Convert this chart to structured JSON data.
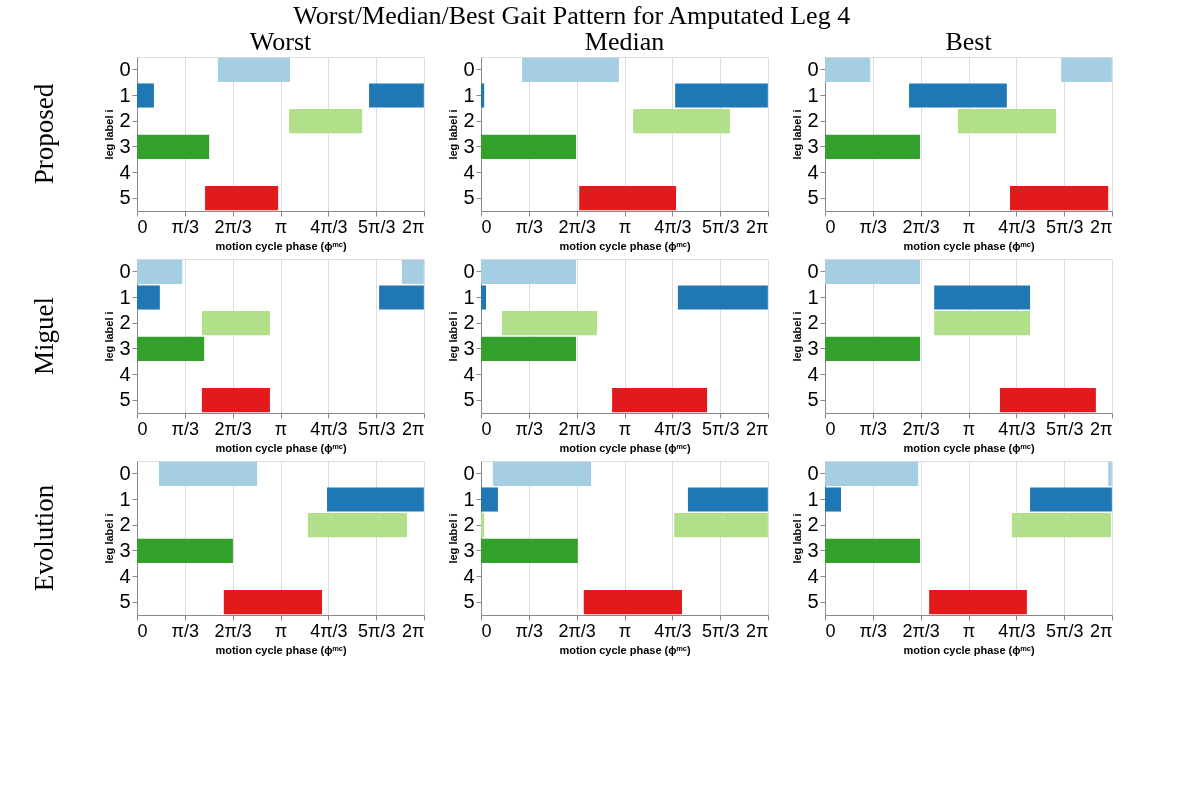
{
  "chart_data": [
    {
      "type": "bar",
      "orientation": "horizontal",
      "title": "Worst",
      "annotations": [
        "Worst/Median/Best Gait Pattern for Amputated Leg 4",
        "Proposed"
      ],
      "xlabel": "motion cycle phase (ϕᵐᶜ)",
      "ylabel": "leg label i",
      "categories": [
        "0",
        "1",
        "2",
        "3",
        "4",
        "5"
      ],
      "xlim": [
        0,
        6.283
      ],
      "xticks": [
        0,
        {
          "value": 1.047,
          "label": "π/3"
        },
        {
          "value": 2.094,
          "label": "2π/3"
        },
        {
          "value": 3.142,
          "label": "π"
        },
        {
          "value": 4.189,
          "label": "4π/3"
        },
        {
          "value": 5.236,
          "label": "5π/3"
        },
        {
          "value": 6.283,
          "label": "2π"
        }
      ],
      "grid": "x",
      "series": [
        {
          "colors": [
            "#a6cee3",
            "#1f78b4",
            "#b2df8a",
            "#33a02c",
            null,
            "#e31a1c"
          ],
          "base": [
            1.77,
            0,
            3.33,
            0,
            null,
            1.49
          ],
          "values": [
            1.58,
            0.37,
            1.6,
            1.58,
            null,
            1.6
          ]
        },
        {
          "colors": [
            null,
            "#1f78b4",
            null,
            null,
            null,
            null
          ],
          "base": [
            null,
            5.08,
            null,
            null,
            null,
            null
          ],
          "values": [
            null,
            1.2,
            null,
            null,
            null,
            null
          ]
        }
      ]
    },
    {
      "type": "bar",
      "orientation": "horizontal",
      "title": "Median",
      "xlabel": "motion cycle phase (ϕᵐᶜ)",
      "ylabel": "leg label i",
      "categories": [
        "0",
        "1",
        "2",
        "3",
        "4",
        "5"
      ],
      "xlim": [
        0,
        6.283
      ],
      "xticks": [
        0,
        {
          "value": 1.047,
          "label": "π/3"
        },
        {
          "value": 2.094,
          "label": "2π/3"
        },
        {
          "value": 3.142,
          "label": "π"
        },
        {
          "value": 4.189,
          "label": "4π/3"
        },
        {
          "value": 5.236,
          "label": "5π/3"
        },
        {
          "value": 6.283,
          "label": "2π"
        }
      ],
      "grid": "x",
      "series": [
        {
          "colors": [
            "#a6cee3",
            "#1f78b4",
            "#b2df8a",
            "#33a02c",
            null,
            "#e31a1c"
          ],
          "base": [
            0.9,
            0,
            3.33,
            0,
            null,
            2.15
          ],
          "values": [
            2.12,
            0.07,
            2.12,
            2.08,
            null,
            2.12
          ]
        },
        {
          "colors": [
            null,
            "#1f78b4",
            null,
            null,
            null,
            null
          ],
          "base": [
            null,
            4.25,
            null,
            null,
            null,
            null
          ],
          "values": [
            null,
            2.03,
            null,
            null,
            null,
            null
          ]
        }
      ]
    },
    {
      "type": "bar",
      "orientation": "horizontal",
      "title": "Best",
      "xlabel": "motion cycle phase (ϕᵐᶜ)",
      "ylabel": "leg label i",
      "categories": [
        "0",
        "1",
        "2",
        "3",
        "4",
        "5"
      ],
      "xlim": [
        0,
        6.283
      ],
      "xticks": [
        0,
        {
          "value": 1.047,
          "label": "π/3"
        },
        {
          "value": 2.094,
          "label": "2π/3"
        },
        {
          "value": 3.142,
          "label": "π"
        },
        {
          "value": 4.189,
          "label": "4π/3"
        },
        {
          "value": 5.236,
          "label": "5π/3"
        },
        {
          "value": 6.283,
          "label": "2π"
        }
      ],
      "grid": "x",
      "series": [
        {
          "colors": [
            "#a6cee3",
            "#1f78b4",
            "#b2df8a",
            "#33a02c",
            null,
            "#e31a1c"
          ],
          "base": [
            0,
            1.84,
            2.91,
            0,
            null,
            4.05
          ],
          "values": [
            0.99,
            2.14,
            2.15,
            2.08,
            null,
            2.15
          ]
        },
        {
          "colors": [
            "#a6cee3",
            null,
            null,
            null,
            null,
            null
          ],
          "base": [
            5.17,
            null,
            null,
            null,
            null,
            null
          ],
          "values": [
            1.11,
            null,
            null,
            null,
            null,
            null
          ]
        }
      ]
    },
    {
      "type": "bar",
      "orientation": "horizontal",
      "annotations": [
        "Miguel"
      ],
      "xlabel": "motion cycle phase (ϕᵐᶜ)",
      "ylabel": "leg label i",
      "categories": [
        "0",
        "1",
        "2",
        "3",
        "4",
        "5"
      ],
      "xlim": [
        0,
        6.283
      ],
      "xticks": [
        0,
        {
          "value": 1.047,
          "label": "π/3"
        },
        {
          "value": 2.094,
          "label": "2π/3"
        },
        {
          "value": 3.142,
          "label": "π"
        },
        {
          "value": 4.189,
          "label": "4π/3"
        },
        {
          "value": 5.236,
          "label": "5π/3"
        },
        {
          "value": 6.283,
          "label": "2π"
        }
      ],
      "grid": "x",
      "series": [
        {
          "colors": [
            "#a6cee3",
            "#1f78b4",
            "#b2df8a",
            "#33a02c",
            null,
            "#e31a1c"
          ],
          "base": [
            0,
            0,
            1.42,
            0,
            null,
            1.42
          ],
          "values": [
            0.99,
            0.5,
            1.49,
            1.47,
            null,
            1.49
          ]
        },
        {
          "colors": [
            "#a6cee3",
            "#1f78b4",
            null,
            null,
            null,
            null
          ],
          "base": [
            5.8,
            5.3,
            null,
            null,
            null,
            null
          ],
          "values": [
            0.48,
            0.98,
            null,
            null,
            null,
            null
          ]
        }
      ]
    },
    {
      "type": "bar",
      "orientation": "horizontal",
      "xlabel": "motion cycle phase (ϕᵐᶜ)",
      "ylabel": "leg label i",
      "categories": [
        "0",
        "1",
        "2",
        "3",
        "4",
        "5"
      ],
      "xlim": [
        0,
        6.283
      ],
      "xticks": [
        0,
        {
          "value": 1.047,
          "label": "π/3"
        },
        {
          "value": 2.094,
          "label": "2π/3"
        },
        {
          "value": 3.142,
          "label": "π"
        },
        {
          "value": 4.189,
          "label": "4π/3"
        },
        {
          "value": 5.236,
          "label": "5π/3"
        },
        {
          "value": 6.283,
          "label": "2π"
        }
      ],
      "grid": "x",
      "series": [
        {
          "colors": [
            "#a6cee3",
            "#1f78b4",
            "#b2df8a",
            "#33a02c",
            null,
            "#e31a1c"
          ],
          "base": [
            0,
            0,
            0.46,
            0,
            null,
            2.87
          ],
          "values": [
            2.08,
            0.11,
            2.08,
            2.08,
            null,
            2.08
          ]
        },
        {
          "colors": [
            null,
            "#1f78b4",
            null,
            null,
            null,
            null
          ],
          "base": [
            null,
            4.31,
            null,
            null,
            null,
            null
          ],
          "values": [
            null,
            1.97,
            null,
            null,
            null,
            null
          ]
        }
      ]
    },
    {
      "type": "bar",
      "orientation": "horizontal",
      "xlabel": "motion cycle phase (ϕᵐᶜ)",
      "ylabel": "leg label i",
      "categories": [
        "0",
        "1",
        "2",
        "3",
        "4",
        "5"
      ],
      "xlim": [
        0,
        6.283
      ],
      "xticks": [
        0,
        {
          "value": 1.047,
          "label": "π/3"
        },
        {
          "value": 2.094,
          "label": "2π/3"
        },
        {
          "value": 3.142,
          "label": "π"
        },
        {
          "value": 4.189,
          "label": "4π/3"
        },
        {
          "value": 5.236,
          "label": "5π/3"
        },
        {
          "value": 6.283,
          "label": "2π"
        }
      ],
      "grid": "x",
      "series": [
        {
          "colors": [
            "#a6cee3",
            "#1f78b4",
            "#b2df8a",
            "#33a02c",
            null,
            "#e31a1c"
          ],
          "base": [
            0,
            2.39,
            2.39,
            0,
            null,
            3.83
          ],
          "values": [
            2.08,
            2.1,
            2.1,
            2.08,
            null,
            2.1
          ]
        }
      ]
    },
    {
      "type": "bar",
      "orientation": "horizontal",
      "annotations": [
        "Evolution"
      ],
      "xlabel": "motion cycle phase (ϕᵐᶜ)",
      "ylabel": "leg label i",
      "categories": [
        "0",
        "1",
        "2",
        "3",
        "4",
        "5"
      ],
      "xlim": [
        0,
        6.283
      ],
      "xticks": [
        0,
        {
          "value": 1.047,
          "label": "π/3"
        },
        {
          "value": 2.094,
          "label": "2π/3"
        },
        {
          "value": 3.142,
          "label": "π"
        },
        {
          "value": 4.189,
          "label": "4π/3"
        },
        {
          "value": 5.236,
          "label": "5π/3"
        },
        {
          "value": 6.283,
          "label": "2π"
        }
      ],
      "grid": "x",
      "series": [
        {
          "colors": [
            "#a6cee3",
            "#1f78b4",
            "#b2df8a",
            "#33a02c",
            null,
            "#e31a1c"
          ],
          "base": [
            0.48,
            4.16,
            3.74,
            0,
            null,
            1.9
          ],
          "values": [
            2.15,
            2.12,
            2.17,
            2.1,
            null,
            2.15
          ]
        }
      ]
    },
    {
      "type": "bar",
      "orientation": "horizontal",
      "xlabel": "motion cycle phase (ϕᵐᶜ)",
      "ylabel": "leg label i",
      "categories": [
        "0",
        "1",
        "2",
        "3",
        "4",
        "5"
      ],
      "xlim": [
        0,
        6.283
      ],
      "xticks": [
        0,
        {
          "value": 1.047,
          "label": "π/3"
        },
        {
          "value": 2.094,
          "label": "2π/3"
        },
        {
          "value": 3.142,
          "label": "π"
        },
        {
          "value": 4.189,
          "label": "4π/3"
        },
        {
          "value": 5.236,
          "label": "5π/3"
        },
        {
          "value": 6.283,
          "label": "2π"
        }
      ],
      "grid": "x",
      "series": [
        {
          "colors": [
            "#a6cee3",
            "#1f78b4",
            "#b2df8a",
            "#33a02c",
            null,
            "#e31a1c"
          ],
          "base": [
            0.26,
            0,
            0,
            0,
            null,
            2.25
          ],
          "values": [
            2.15,
            0.37,
            0.07,
            2.12,
            null,
            2.15
          ]
        },
        {
          "colors": [
            null,
            "#1f78b4",
            "#b2df8a",
            null,
            null,
            null
          ],
          "base": [
            null,
            4.53,
            4.23,
            null,
            null,
            null
          ],
          "values": [
            null,
            1.75,
            2.05,
            null,
            null,
            null
          ]
        }
      ]
    },
    {
      "type": "bar",
      "orientation": "horizontal",
      "xlabel": "motion cycle phase (ϕᵐᶜ)",
      "ylabel": "leg label i",
      "categories": [
        "0",
        "1",
        "2",
        "3",
        "4",
        "5"
      ],
      "xlim": [
        0,
        6.283
      ],
      "xticks": [
        0,
        {
          "value": 1.047,
          "label": "π/3"
        },
        {
          "value": 2.094,
          "label": "2π/3"
        },
        {
          "value": 3.142,
          "label": "π"
        },
        {
          "value": 4.189,
          "label": "4π/3"
        },
        {
          "value": 5.236,
          "label": "5π/3"
        },
        {
          "value": 6.283,
          "label": "2π"
        }
      ],
      "grid": "x",
      "series": [
        {
          "colors": [
            "#a6cee3",
            "#1f78b4",
            "#b2df8a",
            "#33a02c",
            null,
            "#e31a1c"
          ],
          "base": [
            0,
            0,
            4.09,
            0,
            null,
            2.28
          ],
          "values": [
            2.04,
            0.35,
            2.17,
            2.08,
            null,
            2.14
          ]
        },
        {
          "colors": [
            "#a6cee3",
            "#1f78b4",
            null,
            null,
            null,
            null
          ],
          "base": [
            6.2,
            4.49,
            null,
            null,
            null,
            null
          ],
          "values": [
            0.08,
            1.79,
            null,
            null,
            null,
            null
          ]
        }
      ]
    }
  ]
}
